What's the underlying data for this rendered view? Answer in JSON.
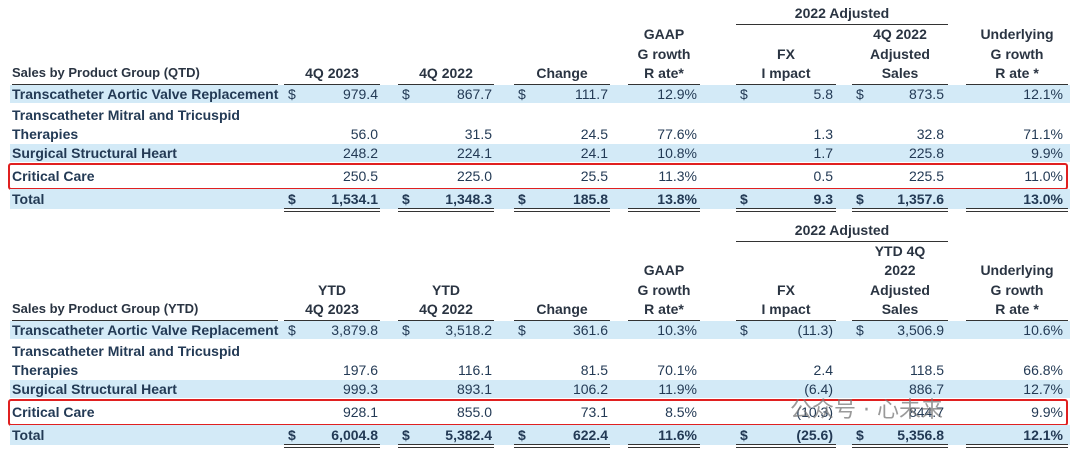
{
  "tables": [
    {
      "group_header": "2022 Adjusted",
      "currency": "$",
      "headers": [
        [
          "Sales by Product Group (QTD)"
        ],
        [
          "4Q 2023"
        ],
        [
          "4Q 2022"
        ],
        [
          "Change"
        ],
        [
          "GAAP",
          "G rowth",
          "R ate*"
        ],
        [
          "FX",
          "I mpact"
        ],
        [
          "4Q 2022",
          "Adjusted",
          "Sales"
        ],
        [
          "Underlying",
          "G rowth",
          "R ate *"
        ]
      ],
      "rows": [
        {
          "label": [
            "Transcatheter Aortic Valve Replacement"
          ],
          "cells": [
            "979.4",
            "867.7",
            "111.7",
            "12.9%",
            "5.8",
            "873.5",
            "12.1%"
          ],
          "dollar": true,
          "shaded": true,
          "highlight": false,
          "bold": false
        },
        {
          "label": [
            "Transcatheter Mitral and Tricuspid",
            "Therapies"
          ],
          "cells": [
            "56.0",
            "31.5",
            "24.5",
            "77.6%",
            "1.3",
            "32.8",
            "71.1%"
          ],
          "dollar": false,
          "shaded": false,
          "highlight": false,
          "bold": false
        },
        {
          "label": [
            "Surgical Structural Heart"
          ],
          "cells": [
            "248.2",
            "224.1",
            "24.1",
            "10.8%",
            "1.7",
            "225.8",
            "9.9%"
          ],
          "dollar": false,
          "shaded": true,
          "highlight": false,
          "bold": false
        },
        {
          "label": [
            "Critical Care"
          ],
          "cells": [
            "250.5",
            "225.0",
            "25.5",
            "11.3%",
            "0.5",
            "225.5",
            "11.0%"
          ],
          "dollar": false,
          "shaded": false,
          "highlight": true,
          "bold": false
        },
        {
          "label": [
            "Total"
          ],
          "cells": [
            "1,534.1",
            "1,348.3",
            "185.8",
            "13.8%",
            "9.3",
            "1,357.6",
            "13.0%"
          ],
          "dollar": true,
          "shaded": true,
          "highlight": false,
          "bold": true
        }
      ]
    },
    {
      "group_header": "2022 Adjusted",
      "currency": "$",
      "headers": [
        [
          "Sales by Product Group (YTD)"
        ],
        [
          "YTD",
          "4Q 2023"
        ],
        [
          "YTD",
          "4Q 2022"
        ],
        [
          "Change"
        ],
        [
          "GAAP",
          "G rowth",
          "R ate*"
        ],
        [
          "FX",
          "I mpact"
        ],
        [
          "YTD 4Q",
          "2022",
          "Adjusted",
          "Sales"
        ],
        [
          "Underlying",
          "G rowth",
          "R ate *"
        ]
      ],
      "rows": [
        {
          "label": [
            "Transcatheter Aortic Valve Replacement"
          ],
          "cells": [
            "3,879.8",
            "3,518.2",
            "361.6",
            "10.3%",
            "(11.3)",
            "3,506.9",
            "10.6%"
          ],
          "dollar": true,
          "shaded": true,
          "highlight": false,
          "bold": false
        },
        {
          "label": [
            "Transcatheter Mitral and Tricuspid",
            "Therapies"
          ],
          "cells": [
            "197.6",
            "116.1",
            "81.5",
            "70.1%",
            "2.4",
            "118.5",
            "66.8%"
          ],
          "dollar": false,
          "shaded": false,
          "highlight": false,
          "bold": false
        },
        {
          "label": [
            "Surgical Structural Heart"
          ],
          "cells": [
            "999.3",
            "893.1",
            "106.2",
            "11.9%",
            "(6.4)",
            "886.7",
            "12.7%"
          ],
          "dollar": false,
          "shaded": true,
          "highlight": false,
          "bold": false
        },
        {
          "label": [
            "Critical Care"
          ],
          "cells": [
            "928.1",
            "855.0",
            "73.1",
            "8.5%",
            "(10.3)",
            "844.7",
            "9.9%"
          ],
          "dollar": false,
          "shaded": false,
          "highlight": true,
          "bold": false
        },
        {
          "label": [
            "Total"
          ],
          "cells": [
            "6,004.8",
            "5,382.4",
            "622.4",
            "11.6%",
            "(25.6)",
            "5,356.8",
            "12.1%"
          ],
          "dollar": true,
          "shaded": true,
          "highlight": false,
          "bold": true
        }
      ]
    }
  ],
  "watermark": "公众号 · 心未来"
}
